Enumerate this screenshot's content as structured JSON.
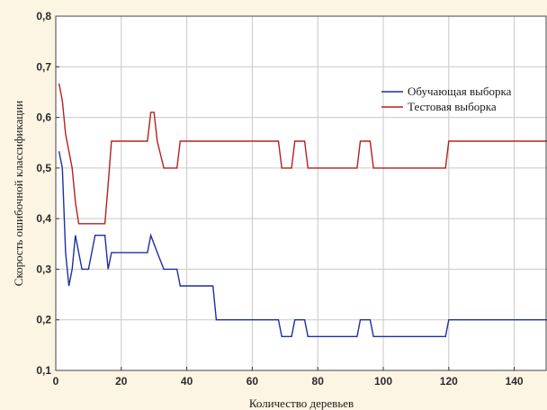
{
  "chart_data": {
    "type": "line",
    "xlabel": "Количество деревьев",
    "ylabel": "Скорость ошибочной классификации",
    "xlim": [
      0,
      150
    ],
    "ylim": [
      0.1,
      0.8
    ],
    "x_ticks": [
      "0",
      "20",
      "40",
      "60",
      "80",
      "100",
      "120",
      "140"
    ],
    "y_ticks": [
      "0,1",
      "0,2",
      "0,3",
      "0,4",
      "0,5",
      "0,6",
      "0,7",
      "0,8"
    ],
    "grid": true,
    "legend_position": "top-right",
    "series": [
      {
        "name": "Обучающая выборка",
        "color": "#1f2fa0",
        "points": [
          [
            1,
            0.533
          ],
          [
            2,
            0.5
          ],
          [
            3,
            0.333
          ],
          [
            4,
            0.267
          ],
          [
            5,
            0.3
          ],
          [
            6,
            0.367
          ],
          [
            7,
            0.333
          ],
          [
            8,
            0.3
          ],
          [
            10,
            0.3
          ],
          [
            11,
            0.333
          ],
          [
            12,
            0.367
          ],
          [
            15,
            0.367
          ],
          [
            16,
            0.3
          ],
          [
            17,
            0.333
          ],
          [
            28,
            0.333
          ],
          [
            29,
            0.367
          ],
          [
            31,
            0.333
          ],
          [
            33,
            0.3
          ],
          [
            37,
            0.3
          ],
          [
            38,
            0.267
          ],
          [
            48,
            0.267
          ],
          [
            49,
            0.2
          ],
          [
            68,
            0.2
          ],
          [
            69,
            0.167
          ],
          [
            72,
            0.167
          ],
          [
            73,
            0.2
          ],
          [
            76,
            0.2
          ],
          [
            77,
            0.167
          ],
          [
            92,
            0.167
          ],
          [
            93,
            0.2
          ],
          [
            96,
            0.2
          ],
          [
            97,
            0.167
          ],
          [
            119,
            0.167
          ],
          [
            120,
            0.2
          ],
          [
            150,
            0.2
          ]
        ]
      },
      {
        "name": "Тестовая выборка",
        "color": "#b52020",
        "points": [
          [
            1,
            0.667
          ],
          [
            2,
            0.633
          ],
          [
            3,
            0.567
          ],
          [
            4,
            0.533
          ],
          [
            5,
            0.5
          ],
          [
            6,
            0.433
          ],
          [
            7,
            0.39
          ],
          [
            15,
            0.39
          ],
          [
            16,
            0.467
          ],
          [
            17,
            0.553
          ],
          [
            28,
            0.553
          ],
          [
            29,
            0.61
          ],
          [
            30,
            0.61
          ],
          [
            31,
            0.553
          ],
          [
            33,
            0.5
          ],
          [
            37,
            0.5
          ],
          [
            38,
            0.553
          ],
          [
            68,
            0.553
          ],
          [
            69,
            0.5
          ],
          [
            72,
            0.5
          ],
          [
            73,
            0.553
          ],
          [
            76,
            0.553
          ],
          [
            77,
            0.5
          ],
          [
            92,
            0.5
          ],
          [
            93,
            0.553
          ],
          [
            96,
            0.553
          ],
          [
            97,
            0.5
          ],
          [
            119,
            0.5
          ],
          [
            120,
            0.553
          ],
          [
            150,
            0.553
          ]
        ]
      }
    ]
  }
}
